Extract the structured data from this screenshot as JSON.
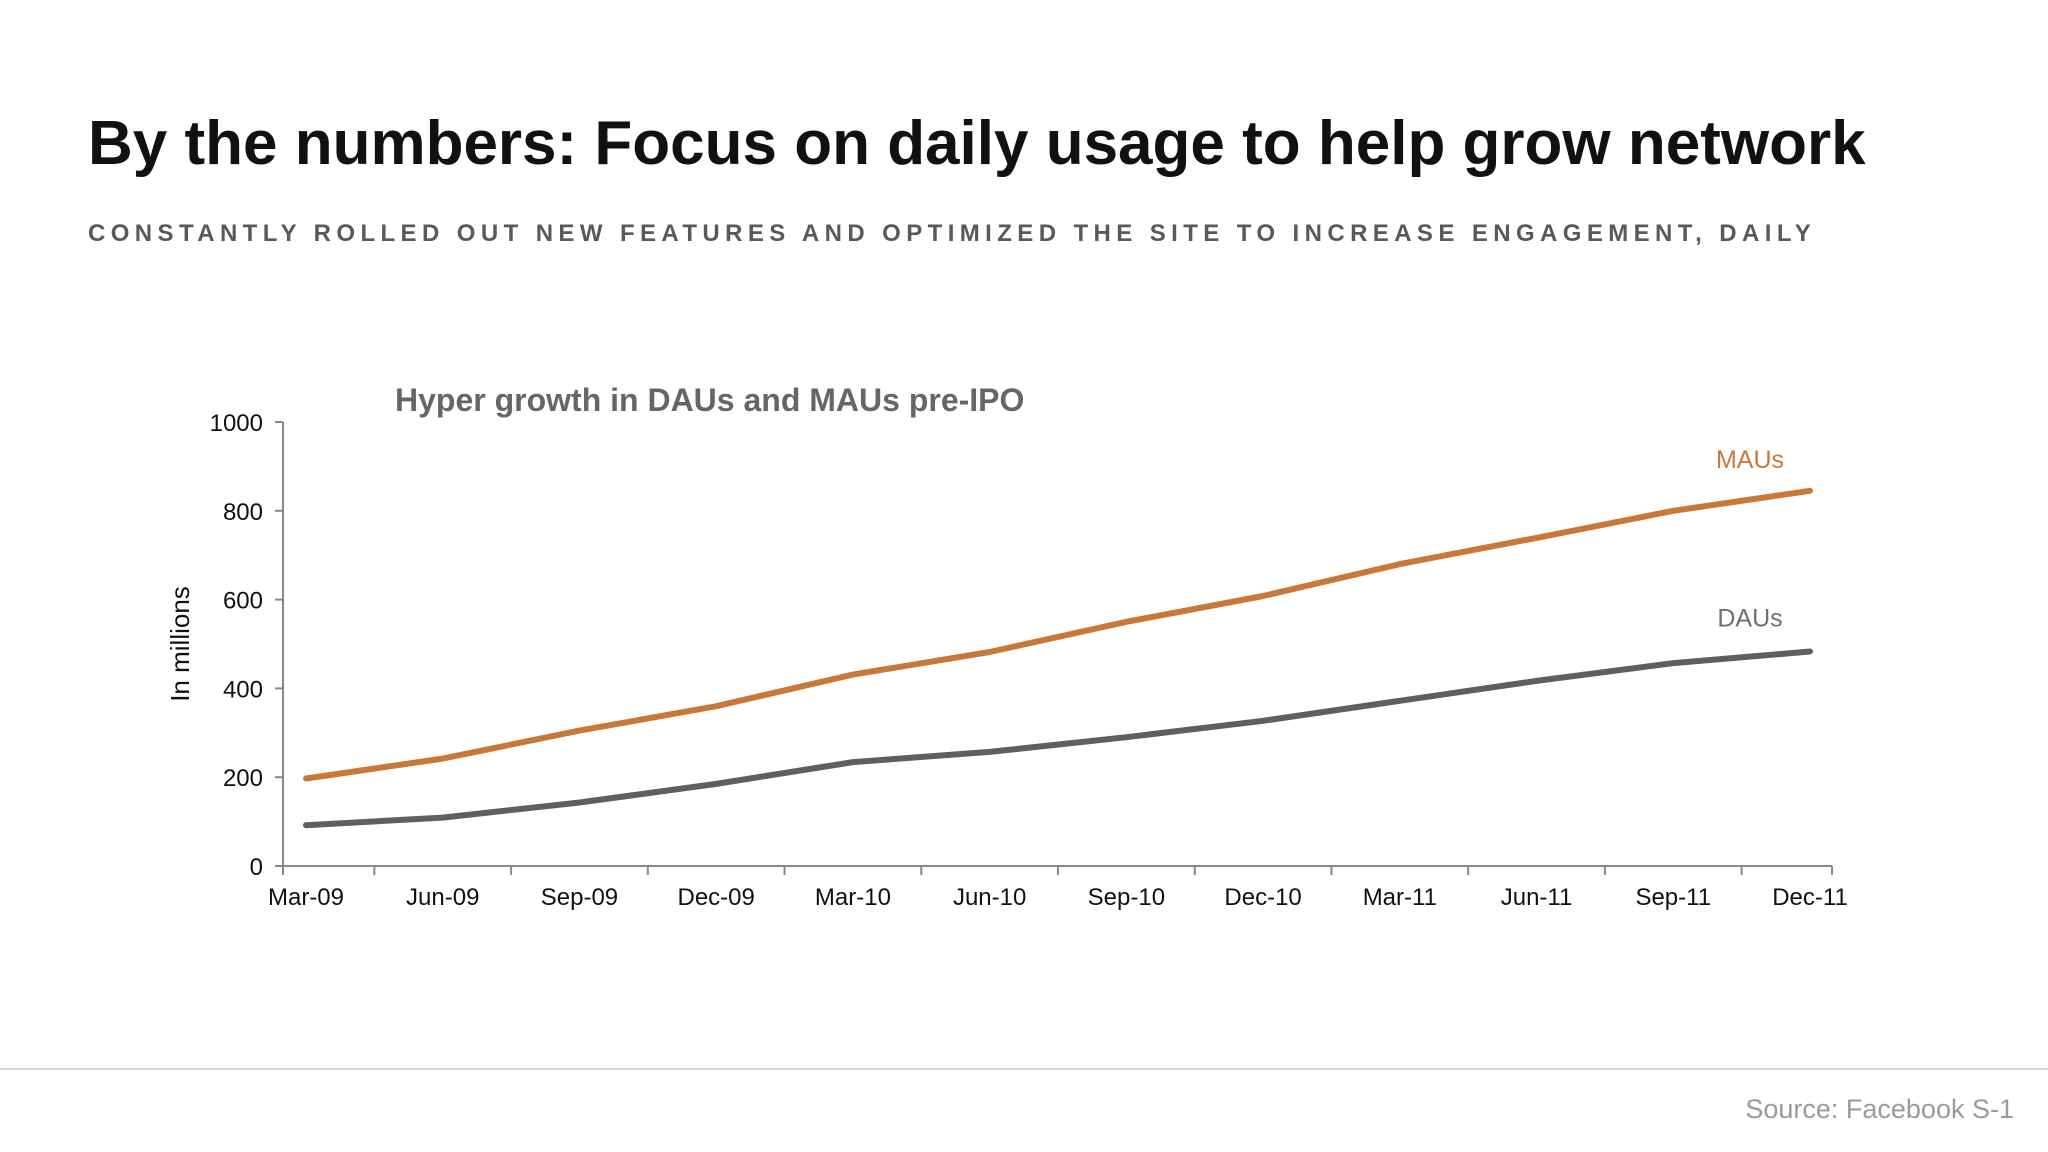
{
  "header": {
    "title": "By the numbers: Focus on daily usage to help grow network",
    "subtitle": "CONSTANTLY ROLLED OUT NEW FEATURES AND OPTIMIZED THE SITE TO INCREASE ENGAGEMENT, DAILY"
  },
  "footer": {
    "source": "Source: Facebook S-1"
  },
  "colors": {
    "mau": "#C8793A",
    "dau": "#5F5F5F",
    "axis": "#888888",
    "text": "#111111",
    "chart_title": "#666666"
  },
  "chart_data": {
    "type": "line",
    "title": "Hyper growth in DAUs and MAUs pre-IPO",
    "xlabel": "",
    "ylabel": "In millions",
    "ylim": [
      0,
      1000
    ],
    "yticks": [
      0,
      200,
      400,
      600,
      800,
      1000
    ],
    "grid": false,
    "categories": [
      "Mar-09",
      "Jun-09",
      "Sep-09",
      "Dec-09",
      "Mar-10",
      "Jun-10",
      "Sep-10",
      "Dec-10",
      "Mar-11",
      "Jun-11",
      "Sep-11",
      "Dec-11"
    ],
    "series": [
      {
        "name": "MAUs",
        "color": "#C8793A",
        "values": [
          197,
          242,
          305,
          360,
          431,
          482,
          550,
          608,
          680,
          739,
          800,
          845
        ]
      },
      {
        "name": "DAUs",
        "color": "#5F5F5F",
        "values": [
          92,
          109,
          143,
          185,
          234,
          257,
          290,
          327,
          372,
          417,
          457,
          483
        ]
      }
    ]
  }
}
